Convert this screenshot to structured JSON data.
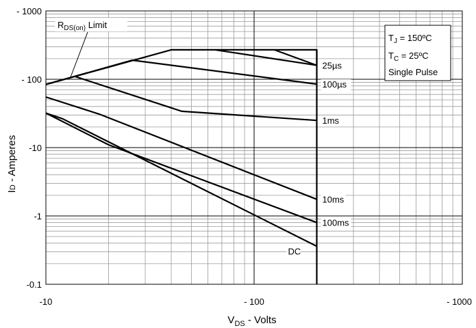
{
  "chart_data": {
    "type": "line",
    "x_scale": "log",
    "y_scale": "log",
    "xlim": [
      10,
      1000
    ],
    "ylim": [
      0.1,
      1000
    ],
    "x_tick_labels": [
      {
        "value": 10,
        "label": "-10"
      },
      {
        "value": 100,
        "label": "- 100"
      },
      {
        "value": 1000,
        "label": "- 1000"
      }
    ],
    "y_tick_labels": [
      {
        "value": 1000,
        "label": "- 1000"
      },
      {
        "value": 100,
        "label": "- 100"
      },
      {
        "value": 10,
        "label": "-10"
      },
      {
        "value": 1,
        "label": "-1"
      },
      {
        "value": 0.1,
        "label": "-0.1"
      }
    ],
    "xlabel": {
      "main": "V",
      "sub": "DS",
      "rest": " - Volts"
    },
    "ylabel": {
      "main": "I",
      "sub": "D",
      "rest": " - Amperes"
    },
    "grid": true,
    "rds_limit_label": {
      "main": "R",
      "sub": "DS(on)",
      "rest": " Limit"
    },
    "conditions": [
      {
        "main": "T",
        "sub": "J",
        "rest": " = 150ºC"
      },
      {
        "main": "T",
        "sub": "C",
        "rest": " = 25ºC"
      },
      {
        "main": "Single Pulse",
        "sub": "",
        "rest": ""
      }
    ],
    "bvdss_voltage": 200,
    "current_limit": 270,
    "series": [
      {
        "name": "25µs",
        "points": [
          [
            10,
            84
          ],
          [
            40,
            270
          ],
          [
            200,
            270
          ],
          [
            200,
            160
          ]
        ],
        "label_value": [
          200,
          160
        ]
      },
      {
        "name": "100µs",
        "points": [
          [
            10,
            84
          ],
          [
            26,
            190
          ],
          [
            200,
            85
          ]
        ],
        "label_value": [
          200,
          85
        ]
      },
      {
        "name": "1ms",
        "points": [
          [
            13.8,
            110
          ],
          [
            45,
            34
          ],
          [
            200,
            25
          ]
        ],
        "label_value": [
          200,
          25
        ]
      },
      {
        "name": "10ms",
        "points": [
          [
            10,
            55
          ],
          [
            18,
            31
          ],
          [
            200,
            1.75
          ]
        ],
        "label_value": [
          200,
          1.75
        ]
      },
      {
        "name": "100ms",
        "points": [
          [
            10,
            32
          ],
          [
            20,
            11
          ],
          [
            200,
            0.8
          ]
        ],
        "label_value": [
          200,
          0.8
        ]
      },
      {
        "name": "DC",
        "points": [
          [
            10,
            32
          ],
          [
            12,
            26.5
          ],
          [
            200,
            0.36
          ]
        ],
        "label_value": [
          200,
          0.36
        ]
      }
    ],
    "extra_segments": [
      {
        "name": "25µs",
        "points": [
          [
            65,
            270
          ],
          [
            200,
            160
          ]
        ]
      },
      {
        "name": "100µs",
        "points": [
          [
            125,
            270
          ],
          [
            200,
            160
          ]
        ]
      }
    ]
  }
}
